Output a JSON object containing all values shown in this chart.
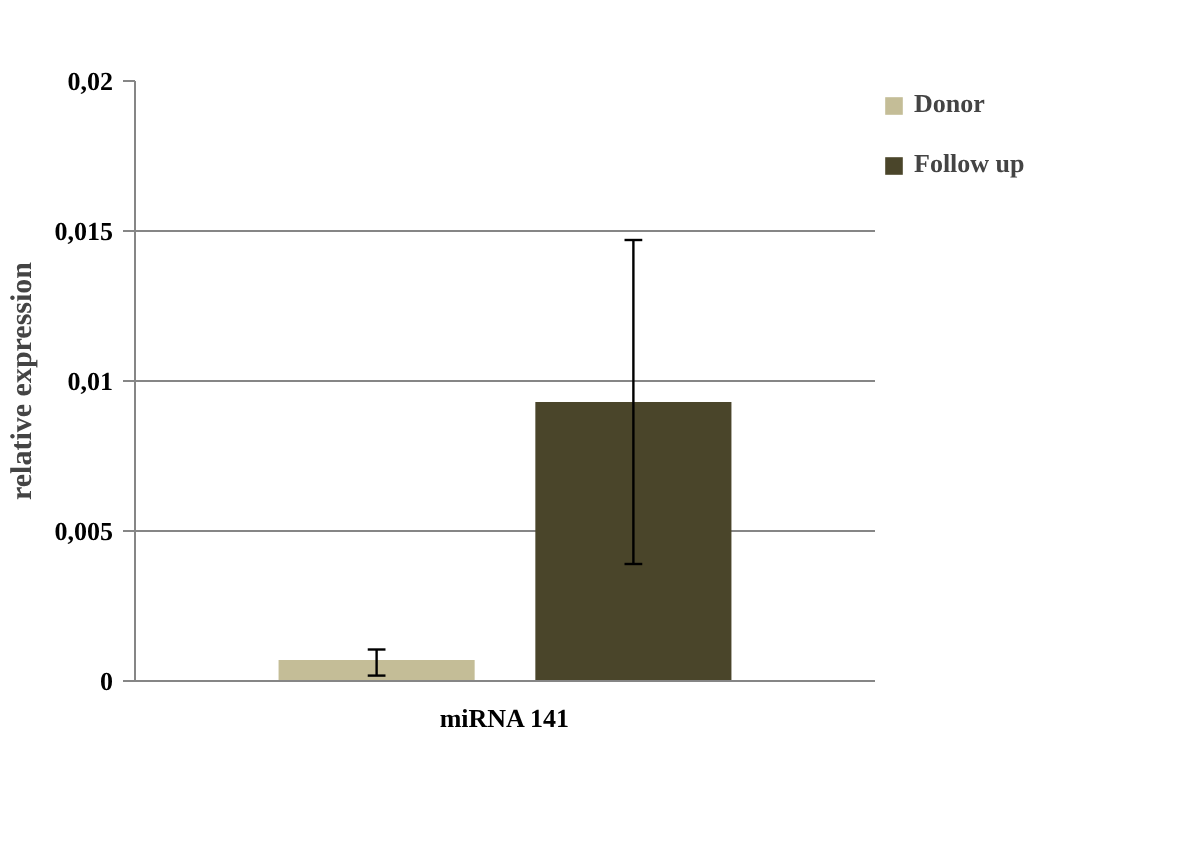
{
  "chart_data": {
    "type": "bar",
    "ylabel": "relative expression",
    "categories": [
      "miRNA 141"
    ],
    "series": [
      {
        "name": "Donor",
        "color": "#c4bd97",
        "values": [
          0.0007
        ],
        "errors": [
          [
            0.00018,
            0.00105
          ]
        ]
      },
      {
        "name": "Follow up",
        "color": "#4a452a",
        "values": [
          0.0093
        ],
        "errors": [
          [
            0.0039,
            0.0147
          ]
        ]
      }
    ],
    "ylim": [
      0,
      0.02
    ],
    "yticks": [
      0,
      {
        "value": 0.005,
        "label": "0,005"
      },
      {
        "value": 0.01,
        "label": "0,01"
      },
      {
        "value": 0.015,
        "label": "0,015"
      },
      {
        "value": 0.02,
        "label": "0,02"
      }
    ],
    "grid": "y",
    "legend": "top right"
  }
}
